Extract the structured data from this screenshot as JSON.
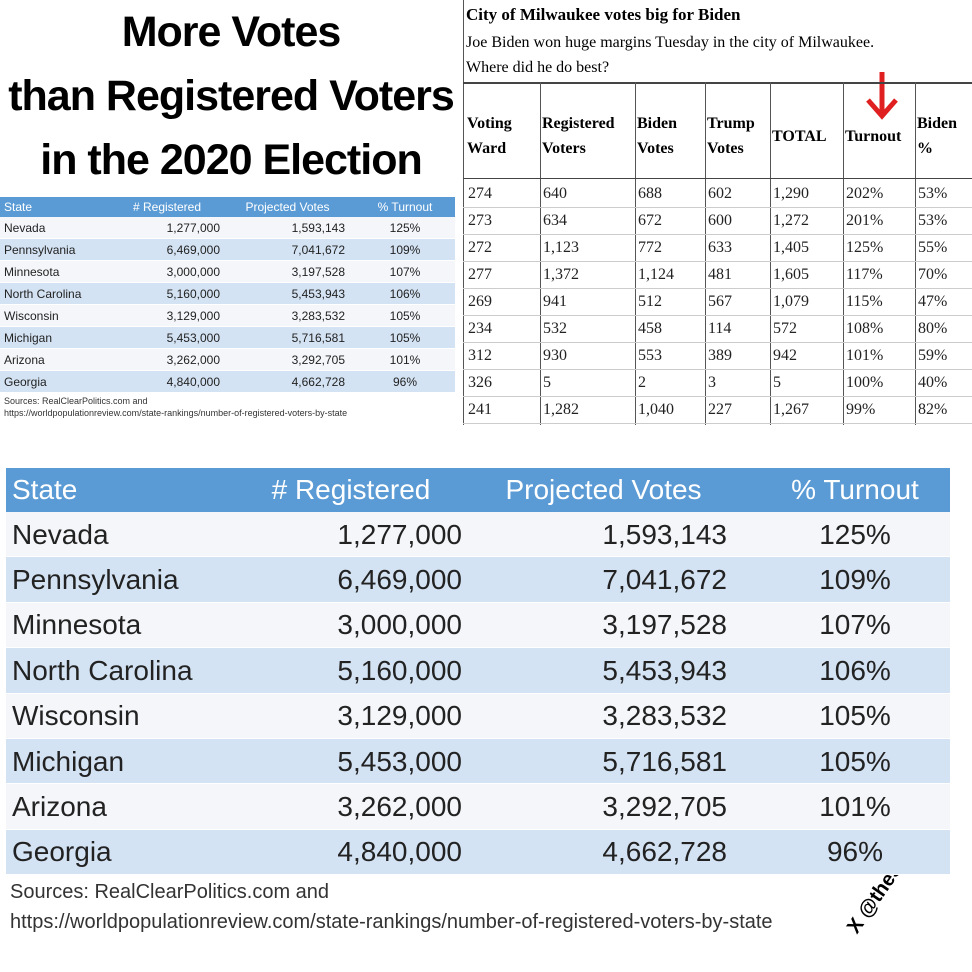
{
  "title": {
    "lines": [
      "More Votes",
      "than Registered Voters",
      "in the 2020 Election"
    ]
  },
  "states_table": {
    "headers": [
      "State",
      "# Registered",
      "Projected Votes",
      "% Turnout"
    ],
    "rows": [
      [
        "Nevada",
        "1,277,000",
        "1,593,143",
        "125%"
      ],
      [
        "Pennsylvania",
        "6,469,000",
        "7,041,672",
        "109%"
      ],
      [
        "Minnesota",
        "3,000,000",
        "3,197,528",
        "107%"
      ],
      [
        "North Carolina",
        "5,160,000",
        "5,453,943",
        "106%"
      ],
      [
        "Wisconsin",
        "3,129,000",
        "3,283,532",
        "105%"
      ],
      [
        "Michigan",
        "5,453,000",
        "5,716,581",
        "105%"
      ],
      [
        "Arizona",
        "3,262,000",
        "3,292,705",
        "101%"
      ],
      [
        "Georgia",
        "4,840,000",
        "4,662,728",
        "96%"
      ]
    ],
    "sources": [
      "Sources: RealClearPolitics.com and",
      "https://worldpopulationreview.com/state-rankings/number-of-registered-voters-by-state"
    ]
  },
  "milwaukee": {
    "title": "City of Milwaukee votes big for Biden",
    "subtitle": [
      "Joe Biden won huge margins Tuesday in the city of Milwaukee.",
      "Where did he do best?"
    ],
    "headers": [
      [
        "Voting",
        "Ward"
      ],
      [
        "Registered",
        "Voters"
      ],
      [
        "Biden",
        "Votes"
      ],
      [
        "Trump",
        "Votes"
      ],
      [
        "TOTAL"
      ],
      [
        "Turnout"
      ],
      [
        "Biden",
        "%"
      ]
    ],
    "rows": [
      [
        "274",
        "640",
        "688",
        "602",
        "1,290",
        "202%",
        "53%"
      ],
      [
        "273",
        "634",
        "672",
        "600",
        "1,272",
        "201%",
        "53%"
      ],
      [
        "272",
        "1,123",
        "772",
        "633",
        "1,405",
        "125%",
        "55%"
      ],
      [
        "277",
        "1,372",
        "1,124",
        "481",
        "1,605",
        "117%",
        "70%"
      ],
      [
        "269",
        "941",
        "512",
        "567",
        "1,079",
        "115%",
        "47%"
      ],
      [
        "234",
        "532",
        "458",
        "114",
        "572",
        "108%",
        "80%"
      ],
      [
        "312",
        "930",
        "553",
        "389",
        "942",
        "101%",
        "59%"
      ],
      [
        "326",
        "5",
        "2",
        "3",
        "5",
        "100%",
        "40%"
      ],
      [
        "241",
        "1,282",
        "1,040",
        "227",
        "1,267",
        "99%",
        "82%"
      ]
    ]
  },
  "watermark": "X @theSOIF"
}
